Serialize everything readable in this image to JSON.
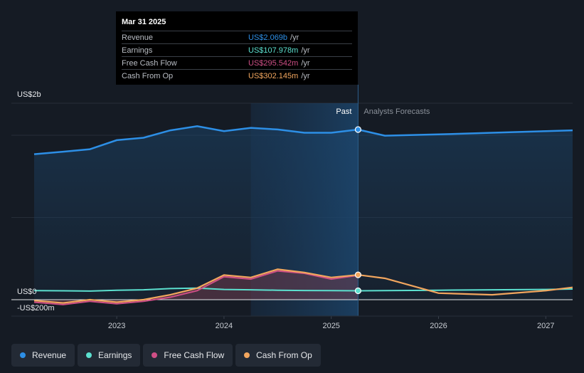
{
  "colors": {
    "revenue": "#2d8fe6",
    "earnings": "#5ce0cf",
    "fcf": "#cf4f86",
    "cfo": "#f2a65e"
  },
  "tooltip": {
    "date": "Mar 31 2025",
    "rows": [
      {
        "label": "Revenue",
        "value": "US$2.069b",
        "unit": "/yr",
        "color": "#2d8fe6"
      },
      {
        "label": "Earnings",
        "value": "US$107.978m",
        "unit": "/yr",
        "color": "#5ce0cf"
      },
      {
        "label": "Free Cash Flow",
        "value": "US$295.542m",
        "unit": "/yr",
        "color": "#cf4f86"
      },
      {
        "label": "Cash From Op",
        "value": "US$302.145m",
        "unit": "/yr",
        "color": "#f2a65e"
      }
    ]
  },
  "chart_data": {
    "type": "line",
    "y_axis_labels": {
      "top": "US$2b",
      "zero": "US$0",
      "bottom": "-US$200m"
    },
    "ylim": [
      -200,
      2100
    ],
    "xlim": [
      2022.23,
      2027.25
    ],
    "x_ticks": [
      {
        "value": 2023,
        "label": "2023"
      },
      {
        "value": 2024,
        "label": "2024"
      },
      {
        "value": 2025,
        "label": "2025"
      },
      {
        "value": 2026,
        "label": "2026"
      },
      {
        "value": 2027,
        "label": "2027"
      }
    ],
    "past_label": "Past",
    "forecast_label": "Analysts Forecasts",
    "past_region_start": 2024.25,
    "divider": 2025.25,
    "series": [
      {
        "name": "Revenue",
        "key": "revenue",
        "fill": true,
        "points": [
          [
            2022.23,
            1770
          ],
          [
            2022.5,
            1800
          ],
          [
            2022.75,
            1830
          ],
          [
            2023.0,
            1940
          ],
          [
            2023.25,
            1970
          ],
          [
            2023.5,
            2060
          ],
          [
            2023.75,
            2110
          ],
          [
            2024.0,
            2050
          ],
          [
            2024.25,
            2090
          ],
          [
            2024.5,
            2070
          ],
          [
            2024.75,
            2030
          ],
          [
            2025.0,
            2030
          ],
          [
            2025.25,
            2069
          ],
          [
            2025.5,
            1995
          ],
          [
            2026.0,
            2010
          ],
          [
            2026.5,
            2030
          ],
          [
            2027.0,
            2050
          ],
          [
            2027.25,
            2060
          ]
        ],
        "points_past_end_index": 12
      },
      {
        "name": "Earnings",
        "key": "earnings",
        "fill": false,
        "points": [
          [
            2022.23,
            110
          ],
          [
            2022.5,
            108
          ],
          [
            2022.75,
            105
          ],
          [
            2023.0,
            115
          ],
          [
            2023.25,
            120
          ],
          [
            2023.5,
            135
          ],
          [
            2023.75,
            140
          ],
          [
            2024.0,
            125
          ],
          [
            2024.25,
            120
          ],
          [
            2024.5,
            115
          ],
          [
            2024.75,
            112
          ],
          [
            2025.0,
            110
          ],
          [
            2025.25,
            108
          ],
          [
            2025.5,
            110
          ],
          [
            2026.0,
            115
          ],
          [
            2026.5,
            120
          ],
          [
            2027.0,
            125
          ],
          [
            2027.25,
            130
          ]
        ]
      },
      {
        "name": "Free Cash Flow",
        "key": "fcf",
        "fill": true,
        "points": [
          [
            2022.23,
            -30
          ],
          [
            2022.5,
            -60
          ],
          [
            2022.75,
            -20
          ],
          [
            2023.0,
            -50
          ],
          [
            2023.25,
            -20
          ],
          [
            2023.5,
            30
          ],
          [
            2023.75,
            110
          ],
          [
            2024.0,
            280
          ],
          [
            2024.25,
            250
          ],
          [
            2024.5,
            350
          ],
          [
            2024.75,
            320
          ],
          [
            2025.0,
            250
          ],
          [
            2025.25,
            296
          ]
        ]
      },
      {
        "name": "Cash From Op",
        "key": "cfo",
        "fill": true,
        "points": [
          [
            2022.23,
            -10
          ],
          [
            2022.5,
            -40
          ],
          [
            2022.75,
            0
          ],
          [
            2023.0,
            -30
          ],
          [
            2023.25,
            0
          ],
          [
            2023.5,
            60
          ],
          [
            2023.75,
            140
          ],
          [
            2024.0,
            300
          ],
          [
            2024.25,
            270
          ],
          [
            2024.5,
            370
          ],
          [
            2024.75,
            330
          ],
          [
            2025.0,
            270
          ],
          [
            2025.25,
            302
          ],
          [
            2025.5,
            260
          ],
          [
            2026.0,
            80
          ],
          [
            2026.5,
            60
          ],
          [
            2027.0,
            110
          ],
          [
            2027.25,
            150
          ]
        ]
      }
    ]
  },
  "legend": [
    {
      "label": "Revenue",
      "color": "#2d8fe6"
    },
    {
      "label": "Earnings",
      "color": "#5ce0cf"
    },
    {
      "label": "Free Cash Flow",
      "color": "#cf4f86"
    },
    {
      "label": "Cash From Op",
      "color": "#f2a65e"
    }
  ]
}
